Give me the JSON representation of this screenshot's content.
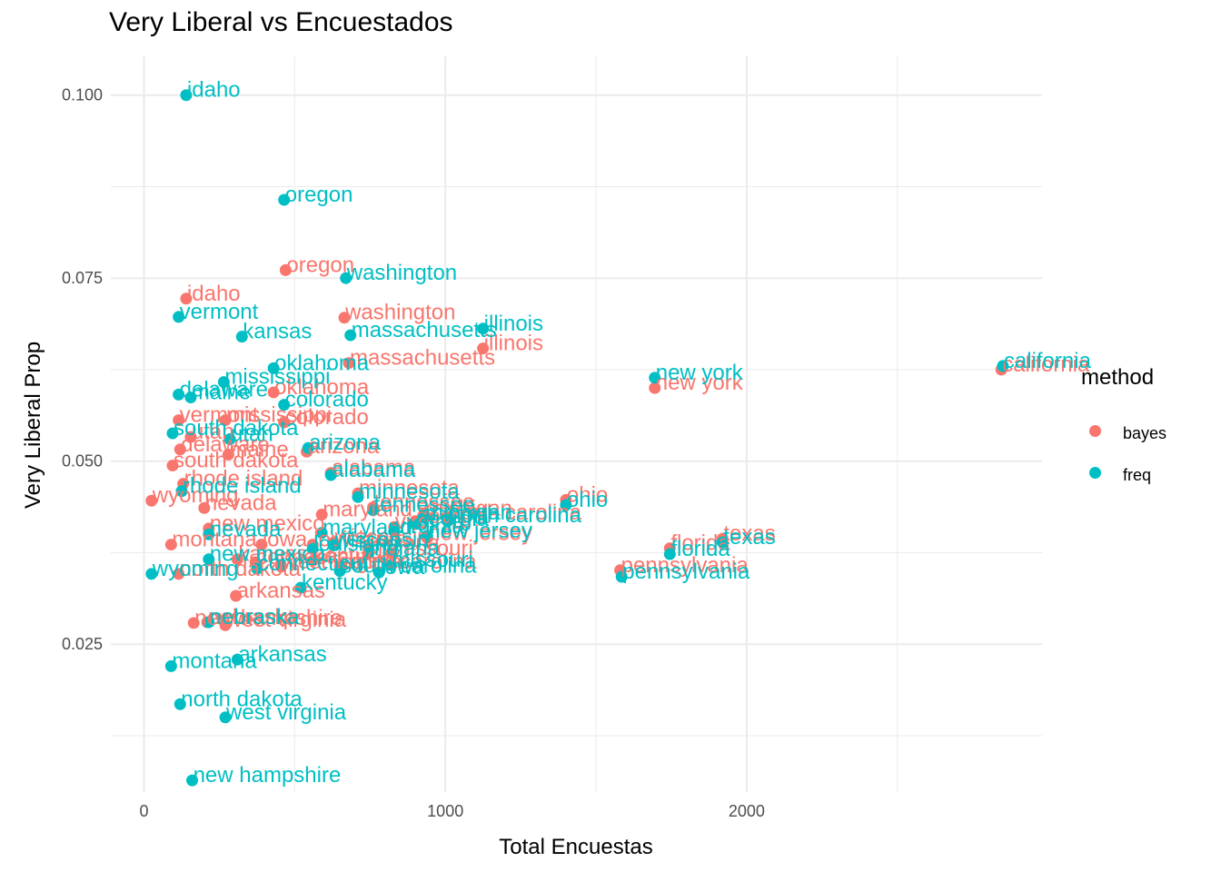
{
  "chart_data": {
    "type": "scatter",
    "title": "Very Liberal vs Encuestados",
    "xlabel": "Total Encuestas",
    "ylabel": "Very Liberal Prop",
    "xlim": [
      -110,
      2980
    ],
    "ylim": [
      0.0048,
      0.1053
    ],
    "xticks": [
      0,
      1000,
      2000
    ],
    "yticks": [
      0.025,
      0.05,
      0.075,
      0.1
    ],
    "ytick_labels": [
      "0.025",
      "0.050",
      "0.075",
      "0.100"
    ],
    "grid": true,
    "legend": {
      "title": "method",
      "position": "right"
    },
    "series": [
      {
        "name": "bayes",
        "color": "#F8766D",
        "points": [
          {
            "label": "oregon",
            "x": 470,
            "y": 0.0761
          },
          {
            "label": "idaho",
            "x": 140,
            "y": 0.0722
          },
          {
            "label": "washington",
            "x": 665,
            "y": 0.0696
          },
          {
            "label": "illinois",
            "x": 1125,
            "y": 0.0654
          },
          {
            "label": "massachusetts",
            "x": 680,
            "y": 0.0634
          },
          {
            "label": "new york",
            "x": 1695,
            "y": 0.06
          },
          {
            "label": "california",
            "x": 2845,
            "y": 0.0625
          },
          {
            "label": "oklahoma",
            "x": 430,
            "y": 0.0594
          },
          {
            "label": "vermont",
            "x": 115,
            "y": 0.0556
          },
          {
            "label": "mississippi",
            "x": 270,
            "y": 0.0556
          },
          {
            "label": "colorado",
            "x": 465,
            "y": 0.0553
          },
          {
            "label": "utah",
            "x": 155,
            "y": 0.0533
          },
          {
            "label": "delaware",
            "x": 120,
            "y": 0.0516
          },
          {
            "label": "maine",
            "x": 280,
            "y": 0.0509
          },
          {
            "label": "arizona",
            "x": 540,
            "y": 0.0513
          },
          {
            "label": "south dakota",
            "x": 95,
            "y": 0.0494
          },
          {
            "label": "alabama",
            "x": 620,
            "y": 0.0484
          },
          {
            "label": "rhode island",
            "x": 130,
            "y": 0.0469
          },
          {
            "label": "minnesota",
            "x": 710,
            "y": 0.0456
          },
          {
            "label": "wyoming",
            "x": 25,
            "y": 0.0446
          },
          {
            "label": "nevada",
            "x": 200,
            "y": 0.0436
          },
          {
            "label": "ohio",
            "x": 1400,
            "y": 0.0447
          },
          {
            "label": "tennessee",
            "x": 760,
            "y": 0.0437
          },
          {
            "label": "michigan",
            "x": 930,
            "y": 0.0428
          },
          {
            "label": "north carolina",
            "x": 1010,
            "y": 0.0423
          },
          {
            "label": "maryland",
            "x": 590,
            "y": 0.0427
          },
          {
            "label": "georgia",
            "x": 900,
            "y": 0.0418
          },
          {
            "label": "virginia",
            "x": 830,
            "y": 0.041
          },
          {
            "label": "new jersey",
            "x": 940,
            "y": 0.0395
          },
          {
            "label": "new mexico",
            "x": 215,
            "y": 0.0408
          },
          {
            "label": "montana",
            "x": 90,
            "y": 0.0386
          },
          {
            "label": "wisconsin",
            "x": 630,
            "y": 0.0389
          },
          {
            "label": "louisiana",
            "x": 560,
            "y": 0.0386
          },
          {
            "label": "iowa",
            "x": 390,
            "y": 0.0386
          },
          {
            "label": "texas",
            "x": 1920,
            "y": 0.0394
          },
          {
            "label": "florida",
            "x": 1745,
            "y": 0.0381
          },
          {
            "label": "indiana",
            "x": 745,
            "y": 0.0381
          },
          {
            "label": "missouri",
            "x": 820,
            "y": 0.0374
          },
          {
            "label": "kentucky",
            "x": 560,
            "y": 0.0364
          },
          {
            "label": "kansas",
            "x": 310,
            "y": 0.0366
          },
          {
            "label": "west virginia",
            "x": 455,
            "y": 0.0356
          },
          {
            "label": "south carolina",
            "x": 650,
            "y": 0.0356
          },
          {
            "label": "north dakota",
            "x": 115,
            "y": 0.0346
          },
          {
            "label": "connecticut",
            "x": 370,
            "y": 0.0362
          },
          {
            "label": "pennsylvania",
            "x": 1580,
            "y": 0.0351
          },
          {
            "label": "arkansas",
            "x": 305,
            "y": 0.0316
          },
          {
            "label": "nebraska",
            "x": 210,
            "y": 0.028
          },
          {
            "label": "new hampshire",
            "x": 165,
            "y": 0.0279
          },
          {
            "label": "west virginia",
            "x": 270,
            "y": 0.0276
          }
        ]
      },
      {
        "name": "freq",
        "color": "#00BFC4",
        "points": [
          {
            "label": "idaho",
            "x": 140,
            "y": 0.1
          },
          {
            "label": "oregon",
            "x": 465,
            "y": 0.0857
          },
          {
            "label": "washington",
            "x": 670,
            "y": 0.075
          },
          {
            "label": "vermont",
            "x": 115,
            "y": 0.0697
          },
          {
            "label": "illinois",
            "x": 1125,
            "y": 0.0681
          },
          {
            "label": "kansas",
            "x": 325,
            "y": 0.067
          },
          {
            "label": "massachusetts",
            "x": 685,
            "y": 0.0672
          },
          {
            "label": "oklahoma",
            "x": 430,
            "y": 0.0627
          },
          {
            "label": "new york",
            "x": 1695,
            "y": 0.0614
          },
          {
            "label": "california",
            "x": 2850,
            "y": 0.063
          },
          {
            "label": "mississippi",
            "x": 265,
            "y": 0.0608
          },
          {
            "label": "delaware",
            "x": 115,
            "y": 0.0591
          },
          {
            "label": "maine",
            "x": 155,
            "y": 0.0587
          },
          {
            "label": "colorado",
            "x": 465,
            "y": 0.0577
          },
          {
            "label": "south dakota",
            "x": 95,
            "y": 0.0538
          },
          {
            "label": "utah",
            "x": 285,
            "y": 0.053
          },
          {
            "label": "arizona",
            "x": 545,
            "y": 0.0518
          },
          {
            "label": "alabama",
            "x": 620,
            "y": 0.0481
          },
          {
            "label": "rhode island",
            "x": 125,
            "y": 0.0459
          },
          {
            "label": "minnesota",
            "x": 710,
            "y": 0.0451
          },
          {
            "label": "ohio",
            "x": 1400,
            "y": 0.044
          },
          {
            "label": "tennessee",
            "x": 760,
            "y": 0.0433
          },
          {
            "label": "north carolina",
            "x": 1010,
            "y": 0.0419
          },
          {
            "label": "michigan",
            "x": 930,
            "y": 0.0423
          },
          {
            "label": "georgia",
            "x": 900,
            "y": 0.0414
          },
          {
            "label": "new jersey",
            "x": 940,
            "y": 0.0398
          },
          {
            "label": "virginia",
            "x": 830,
            "y": 0.0404
          },
          {
            "label": "maryland",
            "x": 590,
            "y": 0.0402
          },
          {
            "label": "nevada",
            "x": 215,
            "y": 0.04
          },
          {
            "label": "wisconsin",
            "x": 630,
            "y": 0.0385
          },
          {
            "label": "louisiana",
            "x": 560,
            "y": 0.038
          },
          {
            "label": "texas",
            "x": 1920,
            "y": 0.0389
          },
          {
            "label": "florida",
            "x": 1745,
            "y": 0.0373
          },
          {
            "label": "indiana",
            "x": 745,
            "y": 0.0374
          },
          {
            "label": "missouri",
            "x": 820,
            "y": 0.0358
          },
          {
            "label": "new mexico",
            "x": 215,
            "y": 0.0366
          },
          {
            "label": "connecticut",
            "x": 375,
            "y": 0.0353
          },
          {
            "label": "south carolina",
            "x": 650,
            "y": 0.035
          },
          {
            "label": "wyoming",
            "x": 25,
            "y": 0.0346
          },
          {
            "label": "kentucky",
            "x": 520,
            "y": 0.0327
          },
          {
            "label": "pennsylvania",
            "x": 1585,
            "y": 0.0342
          },
          {
            "label": "iowa",
            "x": 780,
            "y": 0.0348
          },
          {
            "label": "montana",
            "x": 90,
            "y": 0.022
          },
          {
            "label": "nebraska",
            "x": 215,
            "y": 0.028
          },
          {
            "label": "arkansas",
            "x": 310,
            "y": 0.0229
          },
          {
            "label": "north dakota",
            "x": 120,
            "y": 0.0168
          },
          {
            "label": "west virginia",
            "x": 270,
            "y": 0.015
          },
          {
            "label": "new hampshire",
            "x": 160,
            "y": 0.0064
          }
        ]
      }
    ]
  }
}
